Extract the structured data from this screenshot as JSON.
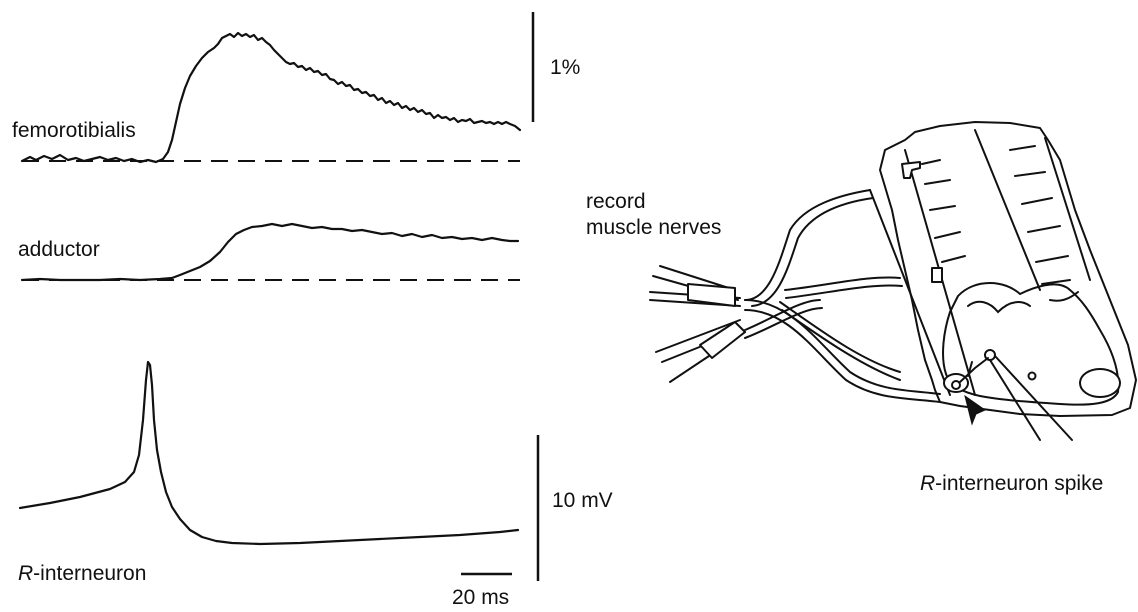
{
  "traces": {
    "femorotibialis": "femorotibialis",
    "adductor": "adductor",
    "interneuron_italic": "R",
    "interneuron_rest": "-interneuron"
  },
  "scale_bars": {
    "percent": "1%",
    "voltage": "10 mV",
    "time": "20 ms"
  },
  "preparation": {
    "record_line1": "record",
    "record_line2": "muscle nerves",
    "spike_italic": "R",
    "spike_rest": "-interneuron spike"
  }
}
